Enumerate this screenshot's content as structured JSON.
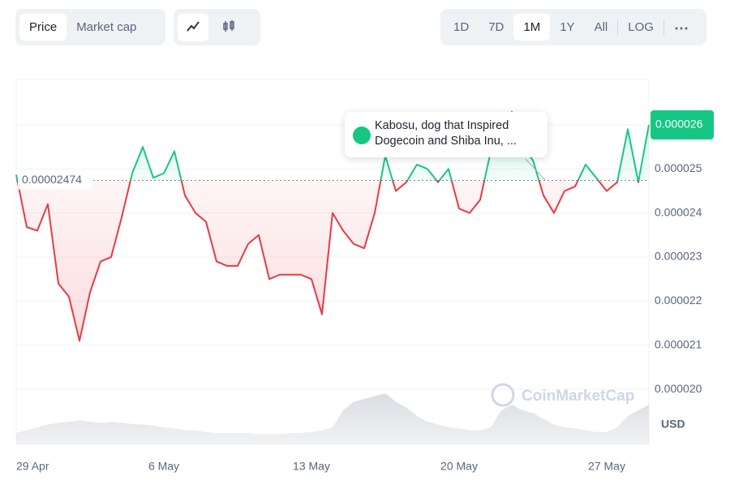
{
  "controls": {
    "metric": [
      "Price",
      "Market cap"
    ],
    "ranges": [
      "1D",
      "7D",
      "1M",
      "1Y",
      "All",
      "LOG"
    ]
  },
  "chart_data": {
    "type": "line",
    "categories": [
      "29 Apr",
      null,
      null,
      null,
      null,
      null,
      null,
      null,
      null,
      null,
      null,
      null,
      null,
      null,
      "6 May",
      null,
      null,
      null,
      null,
      null,
      null,
      null,
      null,
      null,
      null,
      null,
      null,
      null,
      "13 May",
      null,
      null,
      null,
      null,
      null,
      null,
      null,
      null,
      null,
      null,
      null,
      null,
      null,
      "20 May",
      null,
      null,
      null,
      null,
      null,
      null,
      null,
      null,
      null,
      null,
      null,
      null,
      null,
      "27 May",
      null,
      null,
      null,
      null
    ],
    "series": [
      {
        "color": "#16c784",
        "below_color": "#ea3943",
        "values": [
          2.487e-05,
          2.368e-05,
          2.36e-05,
          2.42e-05,
          2.24e-05,
          2.21e-05,
          2.11e-05,
          2.22e-05,
          2.29e-05,
          2.3e-05,
          2.39e-05,
          2.49e-05,
          2.55e-05,
          2.48e-05,
          2.49e-05,
          2.54e-05,
          2.44e-05,
          2.4e-05,
          2.38e-05,
          2.29e-05,
          2.28e-05,
          2.28e-05,
          2.33e-05,
          2.35e-05,
          2.25e-05,
          2.26e-05,
          2.26e-05,
          2.26e-05,
          2.25e-05,
          2.17e-05,
          2.4e-05,
          2.36e-05,
          2.33e-05,
          2.32e-05,
          2.4e-05,
          2.53e-05,
          2.45e-05,
          2.47e-05,
          2.51e-05,
          2.5e-05,
          2.47e-05,
          2.5e-05,
          2.41e-05,
          2.4e-05,
          2.43e-05,
          2.54e-05,
          2.56e-05,
          2.63e-05,
          2.55e-05,
          2.52e-05,
          2.44e-05,
          2.4e-05,
          2.45e-05,
          2.46e-05,
          2.51e-05,
          2.48e-05,
          2.45e-05,
          2.47e-05,
          2.59e-05,
          2.47e-05,
          2.6e-05
        ]
      }
    ],
    "volume": {
      "color": "#d5d9de",
      "values": [
        20,
        25,
        30,
        35,
        38,
        40,
        42,
        40,
        38,
        40,
        38,
        36,
        35,
        33,
        30,
        28,
        25,
        25,
        22,
        20,
        20,
        20,
        20,
        18,
        18,
        18,
        20,
        20,
        22,
        25,
        30,
        60,
        75,
        80,
        85,
        90,
        75,
        65,
        50,
        40,
        35,
        30,
        28,
        25,
        25,
        30,
        60,
        70,
        60,
        55,
        45,
        35,
        30,
        28,
        25,
        22,
        22,
        30,
        50,
        60,
        70
      ]
    },
    "y2lim": [
      0,
      100
    ],
    "baseline": 2.474e-05,
    "ylim": [
      1.875e-05,
      2.703e-05
    ],
    "yticks": [
      {
        "value": 2e-05,
        "label": "0.000020"
      },
      2.1e-05,
      2.2e-05,
      2.3e-05,
      2.4e-05,
      2.5e-05,
      2.6e-05
    ],
    "grid": true,
    "currency": "USD",
    "watermark": "CoinMarketCap",
    "annotation": "Kabosu, dog that Inspired Dogecoin and Shiba Inu, ..."
  }
}
